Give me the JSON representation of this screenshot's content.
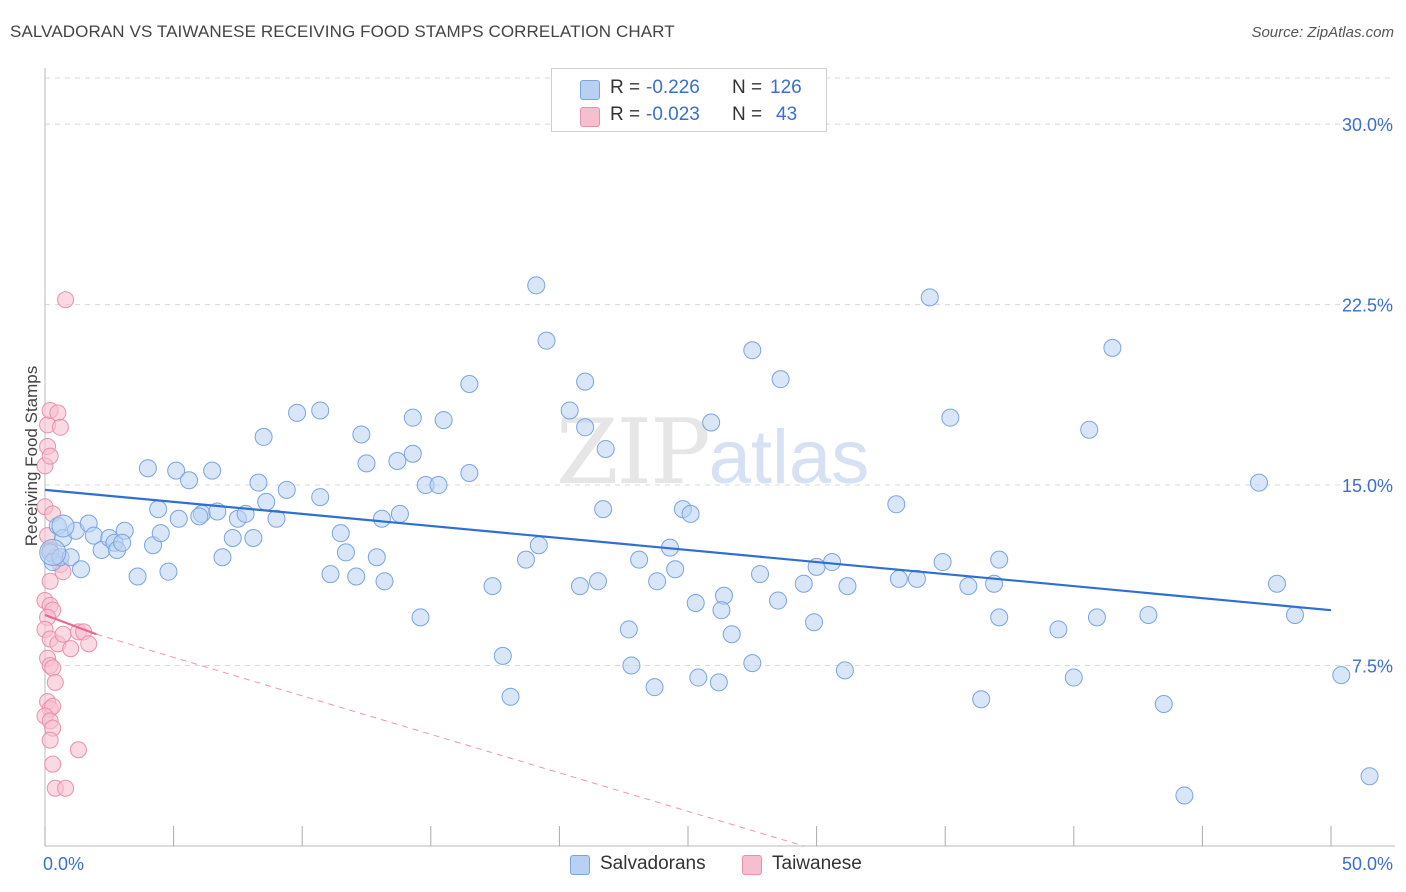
{
  "header": {
    "title": "SALVADORAN VS TAIWANESE RECEIVING FOOD STAMPS CORRELATION CHART",
    "source": "Source: ZipAtlas.com"
  },
  "watermark": {
    "zip": "ZIP",
    "atlas": "atlas"
  },
  "legend": {
    "rows": [
      {
        "r_label": "R =",
        "r_value": "-0.226",
        "n_label": "N =",
        "n_value": "126"
      },
      {
        "r_label": "R =",
        "r_value": "-0.023",
        "n_label": "N =",
        "n_value": "43"
      }
    ]
  },
  "colors": {
    "salvadorans_fill": "#b8d1f2",
    "salvadorans_stroke": "#7aa4e0",
    "salvadorans_line": "#2f6fd0",
    "taiwanese_fill": "#f6bfd0",
    "taiwanese_stroke": "#e890ad",
    "taiwanese_line": "#e8668f",
    "tick_label": "#3a6fd0",
    "grid": "#d8d8d8"
  },
  "chart_data": {
    "type": "scatter",
    "title": "SALVADORAN VS TAIWANESE RECEIVING FOOD STAMPS CORRELATION CHART",
    "xlabel": "",
    "ylabel": "Receiving Food Stamps",
    "xlim": [
      0,
      50
    ],
    "ylim": [
      0,
      31.5
    ],
    "x_tick_labels": [
      "0.0%",
      "50.0%"
    ],
    "y_ticks": [
      7.5,
      15.0,
      22.5,
      30.0
    ],
    "y_tick_labels": [
      "7.5%",
      "15.0%",
      "22.5%",
      "30.0%"
    ],
    "grid": true,
    "legend_position": "top-center",
    "series": [
      {
        "name": "Salvadorans",
        "r": -0.226,
        "n": 126,
        "trend": {
          "x": [
            0,
            50
          ],
          "y": [
            14.8,
            9.8
          ]
        },
        "points": [
          [
            0.2,
            12.2
          ],
          [
            0.3,
            11.8
          ],
          [
            0.5,
            13.3
          ],
          [
            0.6,
            12.0
          ],
          [
            0.7,
            12.8
          ],
          [
            1.0,
            12.0
          ],
          [
            1.2,
            13.1
          ],
          [
            1.4,
            11.5
          ],
          [
            1.7,
            13.4
          ],
          [
            1.9,
            12.9
          ],
          [
            2.2,
            12.3
          ],
          [
            2.5,
            12.8
          ],
          [
            2.7,
            12.6
          ],
          [
            2.8,
            12.3
          ],
          [
            3.1,
            13.1
          ],
          [
            3.6,
            11.2
          ],
          [
            4.2,
            12.5
          ],
          [
            4.8,
            11.4
          ],
          [
            3.0,
            12.6
          ],
          [
            4.5,
            13.0
          ],
          [
            5.2,
            13.6
          ],
          [
            4.4,
            14.0
          ],
          [
            4.0,
            15.7
          ],
          [
            5.1,
            15.6
          ],
          [
            5.6,
            15.2
          ],
          [
            6.1,
            13.8
          ],
          [
            6.5,
            15.6
          ],
          [
            6.7,
            13.9
          ],
          [
            6.0,
            13.7
          ],
          [
            6.9,
            12.0
          ],
          [
            7.3,
            12.8
          ],
          [
            7.5,
            13.6
          ],
          [
            8.1,
            12.8
          ],
          [
            7.8,
            13.8
          ],
          [
            8.3,
            15.1
          ],
          [
            8.6,
            14.3
          ],
          [
            9.0,
            13.6
          ],
          [
            9.4,
            14.8
          ],
          [
            8.5,
            17.0
          ],
          [
            10.7,
            14.5
          ],
          [
            9.8,
            18.0
          ],
          [
            10.7,
            18.1
          ],
          [
            11.1,
            11.3
          ],
          [
            11.5,
            13.0
          ],
          [
            11.7,
            12.2
          ],
          [
            12.3,
            17.1
          ],
          [
            12.1,
            11.2
          ],
          [
            12.5,
            15.9
          ],
          [
            12.9,
            12.0
          ],
          [
            13.1,
            13.6
          ],
          [
            13.2,
            11.0
          ],
          [
            13.7,
            16.0
          ],
          [
            14.3,
            16.3
          ],
          [
            13.8,
            13.8
          ],
          [
            14.3,
            17.8
          ],
          [
            14.8,
            15.0
          ],
          [
            14.6,
            9.5
          ],
          [
            15.5,
            17.7
          ],
          [
            15.3,
            15.0
          ],
          [
            16.5,
            15.5
          ],
          [
            16.5,
            19.2
          ],
          [
            17.4,
            10.8
          ],
          [
            17.8,
            7.9
          ],
          [
            18.1,
            6.2
          ],
          [
            18.7,
            11.9
          ],
          [
            19.2,
            12.5
          ],
          [
            19.1,
            23.3
          ],
          [
            19.5,
            21.0
          ],
          [
            20.8,
            10.8
          ],
          [
            20.4,
            18.1
          ],
          [
            21.0,
            17.4
          ],
          [
            21.0,
            19.3
          ],
          [
            21.5,
            11.0
          ],
          [
            21.8,
            16.5
          ],
          [
            21.7,
            14.0
          ],
          [
            22.8,
            7.5
          ],
          [
            23.1,
            11.9
          ],
          [
            22.7,
            9.0
          ],
          [
            23.8,
            11.0
          ],
          [
            23.7,
            6.6
          ],
          [
            24.3,
            12.4
          ],
          [
            24.5,
            11.5
          ],
          [
            24.8,
            14.0
          ],
          [
            25.1,
            13.8
          ],
          [
            25.3,
            10.1
          ],
          [
            25.9,
            17.6
          ],
          [
            25.4,
            7.0
          ],
          [
            26.2,
            6.8
          ],
          [
            26.7,
            8.8
          ],
          [
            26.4,
            10.4
          ],
          [
            27.5,
            20.6
          ],
          [
            26.3,
            9.8
          ],
          [
            27.8,
            11.3
          ],
          [
            28.6,
            19.4
          ],
          [
            27.5,
            7.6
          ],
          [
            28.5,
            10.2
          ],
          [
            29.9,
            9.3
          ],
          [
            31.1,
            7.3
          ],
          [
            29.5,
            10.9
          ],
          [
            30.0,
            11.6
          ],
          [
            30.6,
            11.8
          ],
          [
            31.2,
            10.8
          ],
          [
            33.2,
            11.1
          ],
          [
            33.1,
            14.2
          ],
          [
            33.9,
            11.1
          ],
          [
            35.2,
            17.8
          ],
          [
            34.4,
            22.8
          ],
          [
            34.9,
            11.8
          ],
          [
            35.9,
            10.8
          ],
          [
            36.4,
            6.1
          ],
          [
            36.9,
            10.9
          ],
          [
            37.1,
            9.5
          ],
          [
            37.1,
            11.9
          ],
          [
            39.4,
            9.0
          ],
          [
            40.0,
            7.0
          ],
          [
            41.5,
            20.7
          ],
          [
            40.6,
            17.3
          ],
          [
            40.9,
            9.5
          ],
          [
            44.3,
            2.1
          ],
          [
            42.9,
            9.6
          ],
          [
            43.5,
            5.9
          ],
          [
            47.2,
            15.1
          ],
          [
            47.9,
            10.9
          ],
          [
            48.6,
            9.6
          ],
          [
            50.4,
            7.1
          ],
          [
            51.5,
            2.9
          ]
        ]
      },
      {
        "name": "Taiwanese",
        "r": -0.023,
        "n": 43,
        "trend": {
          "x": [
            0,
            2.0
          ],
          "y": [
            9.6,
            8.8
          ]
        },
        "trend_extension": {
          "x": [
            2.0,
            29.5
          ],
          "y": [
            8.8,
            0.0
          ]
        },
        "points": [
          [
            0.0,
            15.8
          ],
          [
            0.1,
            16.6
          ],
          [
            0.2,
            16.2
          ],
          [
            0.1,
            17.5
          ],
          [
            0.2,
            18.1
          ],
          [
            0.5,
            18.0
          ],
          [
            0.6,
            17.4
          ],
          [
            0.8,
            22.7
          ],
          [
            0.0,
            14.1
          ],
          [
            0.3,
            13.8
          ],
          [
            0.1,
            12.9
          ],
          [
            0.2,
            12.3
          ],
          [
            0.4,
            12.0
          ],
          [
            0.6,
            11.7
          ],
          [
            0.7,
            11.4
          ],
          [
            0.2,
            11.0
          ],
          [
            0.0,
            10.2
          ],
          [
            0.2,
            10.0
          ],
          [
            0.3,
            9.8
          ],
          [
            0.1,
            9.5
          ],
          [
            0.0,
            9.0
          ],
          [
            0.2,
            8.6
          ],
          [
            0.5,
            8.4
          ],
          [
            0.7,
            8.8
          ],
          [
            1.0,
            8.2
          ],
          [
            1.3,
            8.9
          ],
          [
            1.5,
            8.9
          ],
          [
            1.7,
            8.4
          ],
          [
            0.1,
            7.8
          ],
          [
            0.2,
            7.5
          ],
          [
            0.3,
            7.4
          ],
          [
            0.4,
            6.8
          ],
          [
            0.1,
            6.0
          ],
          [
            0.2,
            5.7
          ],
          [
            0.3,
            5.8
          ],
          [
            0.0,
            5.4
          ],
          [
            0.2,
            5.2
          ],
          [
            0.3,
            4.9
          ],
          [
            0.2,
            4.4
          ],
          [
            1.3,
            4.0
          ],
          [
            0.3,
            3.4
          ],
          [
            0.4,
            2.4
          ],
          [
            0.8,
            2.4
          ]
        ]
      }
    ]
  },
  "bottom_legend": [
    {
      "label": "Salvadorans"
    },
    {
      "label": "Taiwanese"
    }
  ]
}
